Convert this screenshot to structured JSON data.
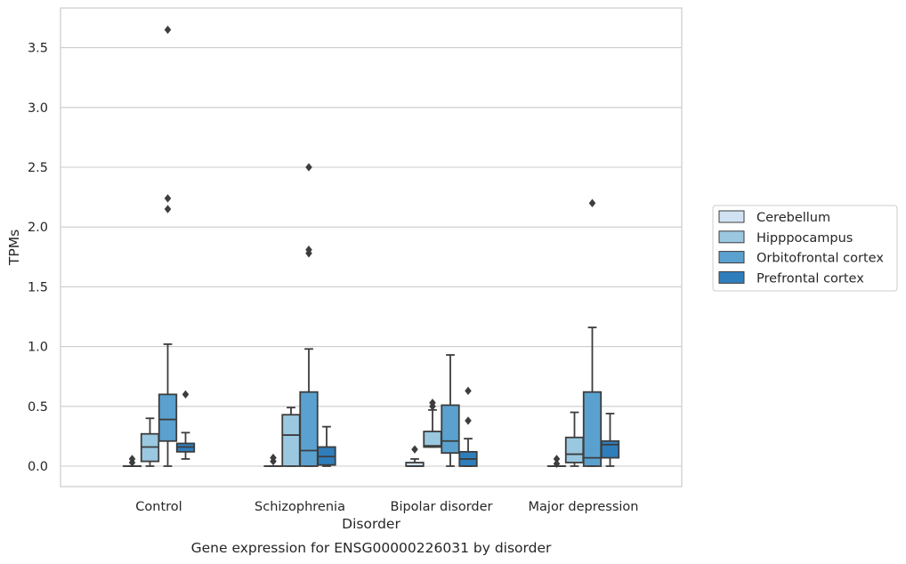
{
  "caption": "Gene expression for ENSG00000226031 by disorder",
  "chart_data": {
    "type": "box",
    "title": "",
    "xlabel": "Disorder",
    "ylabel": "TPMs",
    "ylim": [
      -0.17,
      3.82
    ],
    "yticks": [
      0.0,
      0.5,
      1.0,
      1.5,
      2.0,
      2.5,
      3.0,
      3.5
    ],
    "ytick_labels": [
      "0.0",
      "0.5",
      "1.0",
      "1.5",
      "2.0",
      "2.5",
      "3.0",
      "3.5"
    ],
    "grid": "horizontal",
    "legend_position": "right-outside",
    "categories": [
      "Control",
      "Schizophrenia",
      "Bipolar disorder",
      "Major depression"
    ],
    "series": [
      {
        "name": "Cerebellum",
        "color": "#d1e3f3",
        "boxes": [
          {
            "q1": 0.0,
            "median": 0.0,
            "q3": 0.0,
            "whisker_low": 0.0,
            "whisker_high": 0.0,
            "outliers": [
              0.03,
              0.06
            ]
          },
          {
            "q1": 0.0,
            "median": 0.0,
            "q3": 0.0,
            "whisker_low": 0.0,
            "whisker_high": 0.0,
            "outliers": [
              0.04,
              0.07
            ]
          },
          {
            "q1": 0.0,
            "median": 0.0,
            "q3": 0.03,
            "whisker_low": 0.0,
            "whisker_high": 0.06,
            "outliers": [
              0.14
            ]
          },
          {
            "q1": 0.0,
            "median": 0.0,
            "q3": 0.0,
            "whisker_low": 0.0,
            "whisker_high": 0.0,
            "outliers": [
              0.02,
              0.06
            ]
          }
        ]
      },
      {
        "name": "Hipppocampus",
        "color": "#9ac8e0",
        "boxes": [
          {
            "q1": 0.04,
            "median": 0.16,
            "q3": 0.27,
            "whisker_low": 0.0,
            "whisker_high": 0.4,
            "outliers": []
          },
          {
            "q1": 0.0,
            "median": 0.26,
            "q3": 0.43,
            "whisker_low": 0.0,
            "whisker_high": 0.49,
            "outliers": []
          },
          {
            "q1": 0.16,
            "median": 0.17,
            "q3": 0.29,
            "whisker_low": 0.16,
            "whisker_high": 0.47,
            "outliers": [
              0.5,
              0.53
            ]
          },
          {
            "q1": 0.03,
            "median": 0.1,
            "q3": 0.24,
            "whisker_low": 0.0,
            "whisker_high": 0.45,
            "outliers": []
          }
        ]
      },
      {
        "name": "Orbitofrontal cortex",
        "color": "#5aa1cf",
        "boxes": [
          {
            "q1": 0.21,
            "median": 0.39,
            "q3": 0.6,
            "whisker_low": 0.0,
            "whisker_high": 1.02,
            "outliers": [
              2.15,
              2.24,
              3.65
            ]
          },
          {
            "q1": 0.0,
            "median": 0.13,
            "q3": 0.62,
            "whisker_low": 0.0,
            "whisker_high": 0.98,
            "outliers": [
              1.78,
              1.81,
              2.5
            ]
          },
          {
            "q1": 0.11,
            "median": 0.21,
            "q3": 0.51,
            "whisker_low": 0.0,
            "whisker_high": 0.93,
            "outliers": []
          },
          {
            "q1": 0.0,
            "median": 0.07,
            "q3": 0.62,
            "whisker_low": 0.0,
            "whisker_high": 1.16,
            "outliers": [
              2.2
            ]
          }
        ]
      },
      {
        "name": "Prefrontal cortex",
        "color": "#2f7ebc",
        "boxes": [
          {
            "q1": 0.12,
            "median": 0.16,
            "q3": 0.19,
            "whisker_low": 0.06,
            "whisker_high": 0.28,
            "outliers": [
              0.6
            ]
          },
          {
            "q1": 0.01,
            "median": 0.08,
            "q3": 0.16,
            "whisker_low": 0.0,
            "whisker_high": 0.33,
            "outliers": []
          },
          {
            "q1": 0.0,
            "median": 0.06,
            "q3": 0.12,
            "whisker_low": 0.0,
            "whisker_high": 0.23,
            "outliers": [
              0.38,
              0.63
            ]
          },
          {
            "q1": 0.07,
            "median": 0.18,
            "q3": 0.21,
            "whisker_low": 0.0,
            "whisker_high": 0.44,
            "outliers": []
          }
        ]
      }
    ]
  }
}
